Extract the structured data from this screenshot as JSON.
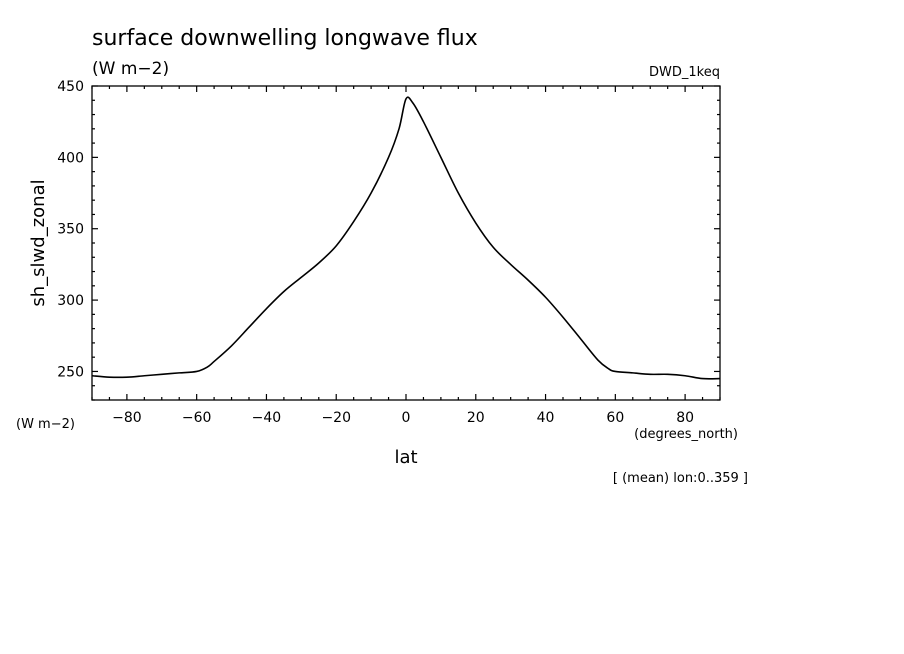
{
  "chart_data": {
    "type": "line",
    "title": "surface downwelling longwave flux",
    "units": "(W m−2)",
    "dataset": "DWD_1keq",
    "ylabel": "sh_slwd_zonal",
    "y_units": "(W m−2)",
    "xlabel": "lat",
    "x_units": "(degrees_north)",
    "annotation": "[ (mean) lon:0..359 ]",
    "xlim": [
      -90,
      90
    ],
    "ylim": [
      230,
      450
    ],
    "x_ticks": [
      -80,
      -60,
      -40,
      -20,
      0,
      20,
      40,
      60,
      80
    ],
    "y_ticks": [
      250,
      300,
      350,
      400,
      450
    ],
    "grid": false,
    "series": [
      {
        "color": "#000000",
        "points": [
          [
            -90,
            247
          ],
          [
            -85,
            246
          ],
          [
            -80,
            246
          ],
          [
            -75,
            247
          ],
          [
            -70,
            248
          ],
          [
            -65,
            249
          ],
          [
            -60,
            250
          ],
          [
            -57,
            253
          ],
          [
            -55,
            257
          ],
          [
            -50,
            268
          ],
          [
            -45,
            281
          ],
          [
            -40,
            294
          ],
          [
            -35,
            306
          ],
          [
            -30,
            316
          ],
          [
            -25,
            326
          ],
          [
            -20,
            338
          ],
          [
            -15,
            355
          ],
          [
            -10,
            375
          ],
          [
            -5,
            400
          ],
          [
            -2,
            420
          ],
          [
            0,
            441
          ],
          [
            2,
            438
          ],
          [
            5,
            425
          ],
          [
            10,
            400
          ],
          [
            15,
            375
          ],
          [
            20,
            354
          ],
          [
            25,
            337
          ],
          [
            30,
            325
          ],
          [
            35,
            314
          ],
          [
            40,
            302
          ],
          [
            45,
            288
          ],
          [
            50,
            273
          ],
          [
            55,
            258
          ],
          [
            58,
            252
          ],
          [
            60,
            250
          ],
          [
            65,
            249
          ],
          [
            70,
            248
          ],
          [
            75,
            248
          ],
          [
            80,
            247
          ],
          [
            85,
            245
          ],
          [
            90,
            245
          ]
        ]
      }
    ]
  }
}
